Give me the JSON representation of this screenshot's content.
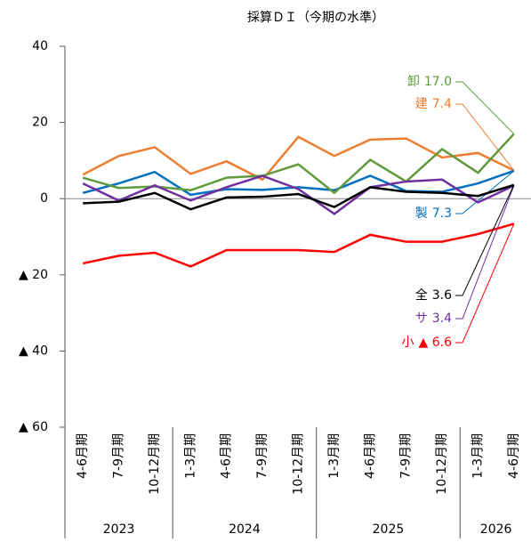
{
  "chart_data": {
    "type": "line",
    "title": "採算ＤＩ（今期の水準）",
    "categories": [
      "4-6月期",
      "7-9月期",
      "10-12月期",
      "1-3月期",
      "4-6月期",
      "7-9月期",
      "10-12月期",
      "1-3月期",
      "4-6月期",
      "7-9月期",
      "10-12月期",
      "1-3月期",
      "4-6月期"
    ],
    "years": [
      "2023",
      null,
      null,
      "2024",
      null,
      null,
      null,
      "2025",
      null,
      null,
      null,
      "2026",
      null
    ],
    "ylim": [
      -60,
      40
    ],
    "yticks": [
      40,
      20,
      0,
      {
        "value": -20,
        "label": "▲ 20"
      },
      {
        "value": -40,
        "label": "▲ 40"
      },
      {
        "value": -60,
        "label": "▲ 60"
      }
    ],
    "series": [
      {
        "name": "小",
        "color": "#ff0000",
        "values": [
          -17,
          -15,
          -14.2,
          -17.8,
          -13.5,
          -13.5,
          -13.5,
          -14,
          -9.5,
          -11.3,
          -11.3,
          -9.3,
          -6.6
        ],
        "value_labels": [
          null,
          null,
          null,
          null,
          null,
          null,
          null,
          null,
          null,
          null,
          null,
          null,
          "▲ 6.6"
        ]
      },
      {
        "name": "建",
        "color": "#ed7d31",
        "values": [
          6.3,
          11.2,
          13.5,
          6.5,
          9.8,
          5,
          16.2,
          11.2,
          15.5,
          15.8,
          10.8,
          12,
          7.4
        ],
        "value_labels": [
          null,
          null,
          null,
          null,
          null,
          null,
          null,
          null,
          null,
          null,
          null,
          null,
          "7.4"
        ]
      },
      {
        "name": "製",
        "color": "#0070c0",
        "values": [
          1.5,
          4,
          7,
          1,
          2.5,
          2.3,
          3,
          2.2,
          6,
          2,
          1.8,
          4,
          7.3
        ],
        "value_labels": [
          null,
          null,
          null,
          null,
          null,
          null,
          null,
          null,
          null,
          null,
          null,
          null,
          "7.3"
        ]
      },
      {
        "name": "卸",
        "color": "#5f9a3c",
        "values": [
          5.5,
          2.8,
          3.2,
          2.2,
          5.5,
          6,
          9,
          1.5,
          10.2,
          4.5,
          13,
          6.8,
          17.0
        ],
        "value_labels": [
          null,
          null,
          null,
          null,
          null,
          null,
          null,
          null,
          null,
          null,
          null,
          null,
          "17.0"
        ]
      },
      {
        "name": "サ",
        "color": "#7030a0",
        "values": [
          4,
          -0.5,
          3.5,
          -0.5,
          3,
          6,
          2.5,
          -4,
          3,
          4.5,
          5,
          -1,
          3.4
        ],
        "value_labels": [
          null,
          null,
          null,
          null,
          null,
          null,
          null,
          null,
          null,
          null,
          null,
          null,
          "3.4"
        ]
      },
      {
        "name": "全",
        "color": "#000000",
        "values": [
          -1.2,
          -0.8,
          1.5,
          -2.8,
          0.3,
          0.5,
          1.2,
          -2.2,
          3,
          1.8,
          1.5,
          0.7,
          3.6
        ],
        "value_labels": [
          null,
          null,
          null,
          null,
          null,
          null,
          null,
          null,
          null,
          null,
          null,
          null,
          "3.6"
        ]
      }
    ]
  }
}
